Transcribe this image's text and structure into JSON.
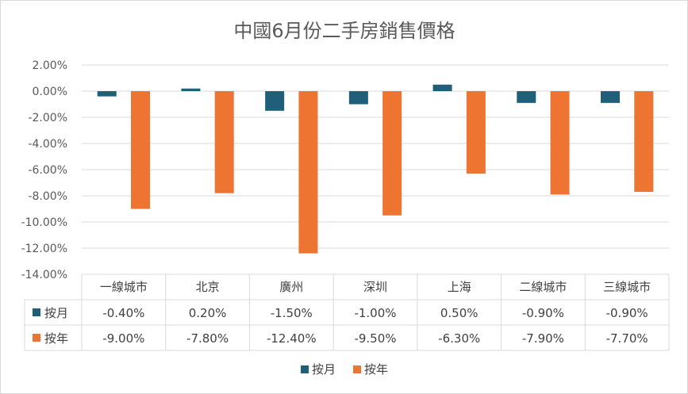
{
  "chart_data": {
    "type": "bar",
    "title": "中國6月份二手房銷售價格",
    "categories": [
      "一線城市",
      "北京",
      "廣州",
      "深圳",
      "上海",
      "二線城市",
      "三線城市"
    ],
    "series": [
      {
        "name": "按月",
        "color": "#1f5f7a",
        "values": [
          -0.4,
          0.2,
          -1.5,
          -1.0,
          0.5,
          -0.9,
          -0.9
        ]
      },
      {
        "name": "按年",
        "color": "#ed7431",
        "values": [
          -9.0,
          -7.8,
          -12.4,
          -9.5,
          -6.3,
          -7.9,
          -7.7
        ]
      }
    ],
    "table_values": [
      [
        "-0.40%",
        "0.20%",
        "-1.50%",
        "-1.00%",
        "0.50%",
        "-0.90%",
        "-0.90%"
      ],
      [
        "-9.00%",
        "-7.80%",
        "-12.40%",
        "-9.50%",
        "-6.30%",
        "-7.90%",
        "-7.70%"
      ]
    ],
    "ylim": [
      -14,
      2
    ],
    "yticks": [
      "2.00%",
      "0.00%",
      "-2.00%",
      "-4.00%",
      "-6.00%",
      "-8.00%",
      "-10.00%",
      "-12.00%",
      "-14.00%"
    ],
    "ytick_values": [
      2,
      0,
      -2,
      -4,
      -6,
      -8,
      -10,
      -12,
      -14
    ],
    "grid": true,
    "legend": "bottom",
    "data_table": true
  }
}
